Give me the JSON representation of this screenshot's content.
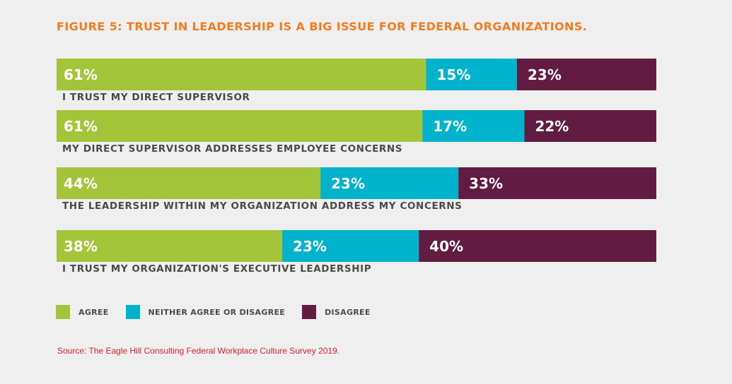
{
  "title": "FIGURE 5: TRUST IN LEADERSHIP IS A BIG ISSUE FOR FEDERAL ORGANIZATIONS.",
  "source": "Source: The Eagle Hill Consulting Federal Workplace Culture Survey 2019.",
  "colors": {
    "title": "#f47c20",
    "source": "#d9202f",
    "agree": "#a4c439",
    "neither": "#00b3cc",
    "disagree": "#621c42",
    "category_text": "#4a4a4a",
    "bar_text": "#ffffff"
  },
  "chart_data": {
    "type": "bar",
    "orientation": "horizontal",
    "stacked": true,
    "title": "FIGURE 5: TRUST IN LEADERSHIP IS A BIG ISSUE FOR FEDERAL ORGANIZATIONS.",
    "xlabel": "",
    "ylabel": "",
    "xlim": [
      0,
      100
    ],
    "grid": false,
    "legend_position": "bottom-left",
    "categories": [
      "I TRUST MY DIRECT SUPERVISOR",
      "MY DIRECT SUPERVISOR ADDRESSES EMPLOYEE CONCERNS",
      "THE LEADERSHIP WITHIN MY ORGANIZATION ADDRESS MY CONCERNS",
      "I TRUST MY ORGANIZATION'S EXECUTIVE LEADERSHIP"
    ],
    "series": [
      {
        "name": "AGREE",
        "key": "agree",
        "values": [
          61,
          61,
          44,
          38
        ],
        "labels": [
          "61%",
          "61%",
          "44%",
          "38%"
        ]
      },
      {
        "name": "NEITHER AGREE OR DISAGREE",
        "key": "neither",
        "values": [
          15,
          17,
          23,
          23
        ],
        "labels": [
          "15%",
          "17%",
          "23%",
          "23%"
        ]
      },
      {
        "name": "DISAGREE",
        "key": "disagree",
        "values": [
          23,
          22,
          33,
          40
        ],
        "labels": [
          "23%",
          "22%",
          "33%",
          "40%"
        ]
      }
    ]
  }
}
